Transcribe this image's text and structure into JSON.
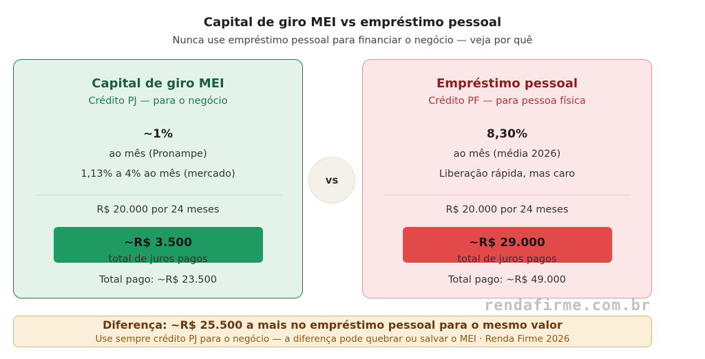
{
  "header": {
    "title": "Capital de giro MEI vs empréstimo pessoal",
    "subtitle": "Nunca use empréstimo pessoal para financiar o negócio — veja por quê"
  },
  "left_card": {
    "title": "Capital de giro MEI",
    "subtitle": "Crédito PJ — para o negócio",
    "rate": "~1%",
    "rate_note": "ao mês (Pronampe)",
    "extra": "1,13% a 4% ao mês (mercado)",
    "loan": "R$ 20.000 por 24 meses",
    "juros": "~R$ 3.500",
    "juros_label": "total de juros pagos",
    "total": "Total pago: ~R$ 23.500",
    "accent": "#1f9a63"
  },
  "vs_label": "vs",
  "right_card": {
    "title": "Empréstimo pessoal",
    "subtitle": "Crédito PF — para pessoa física",
    "rate": "8,30%",
    "rate_note": "ao mês (média 2026)",
    "extra": "Liberação rápida, mas caro",
    "loan": "R$ 20.000 por 24 meses",
    "juros": "~R$ 29.000",
    "juros_label": "total de juros pagos",
    "total": "Total pago: ~R$ 49.000",
    "accent": "#e24a4a"
  },
  "watermark": "rendafirme.com.br",
  "footer": {
    "headline": "Diferença: ~R$ 25.500 a mais no empréstimo pessoal para o mesmo valor",
    "note": "Use sempre crédito PJ para o negócio — a diferença pode quebrar ou salvar o MEI · Renda Firme 2026"
  }
}
